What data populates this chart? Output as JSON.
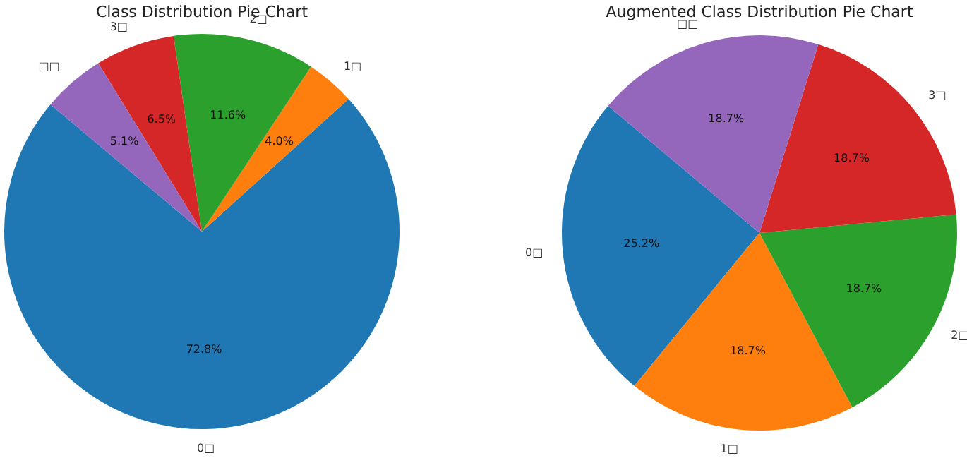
{
  "chart_data": [
    {
      "type": "pie",
      "title": "Class Distribution Pie Chart",
      "categories": [
        "0□",
        "1□",
        "2□",
        "3□",
        "□□"
      ],
      "values": [
        72.8,
        4.0,
        11.6,
        6.5,
        5.1
      ],
      "colors": [
        "#1f77b4",
        "#ff7f0e",
        "#2ca02c",
        "#d62728",
        "#9467bd"
      ],
      "value_labels": [
        "72.8%",
        "4.0%",
        "11.6%",
        "6.5%",
        "5.1%"
      ]
    },
    {
      "type": "pie",
      "title": "Augmented Class Distribution Pie Chart",
      "categories": [
        "0□",
        "1□",
        "2□",
        "3□",
        "□□"
      ],
      "values": [
        25.2,
        18.7,
        18.7,
        18.7,
        18.7
      ],
      "colors": [
        "#1f77b4",
        "#ff7f0e",
        "#2ca02c",
        "#d62728",
        "#9467bd"
      ],
      "value_labels": [
        "25.2%",
        "18.7%",
        "18.7%",
        "18.7%",
        "18.7%"
      ]
    }
  ]
}
